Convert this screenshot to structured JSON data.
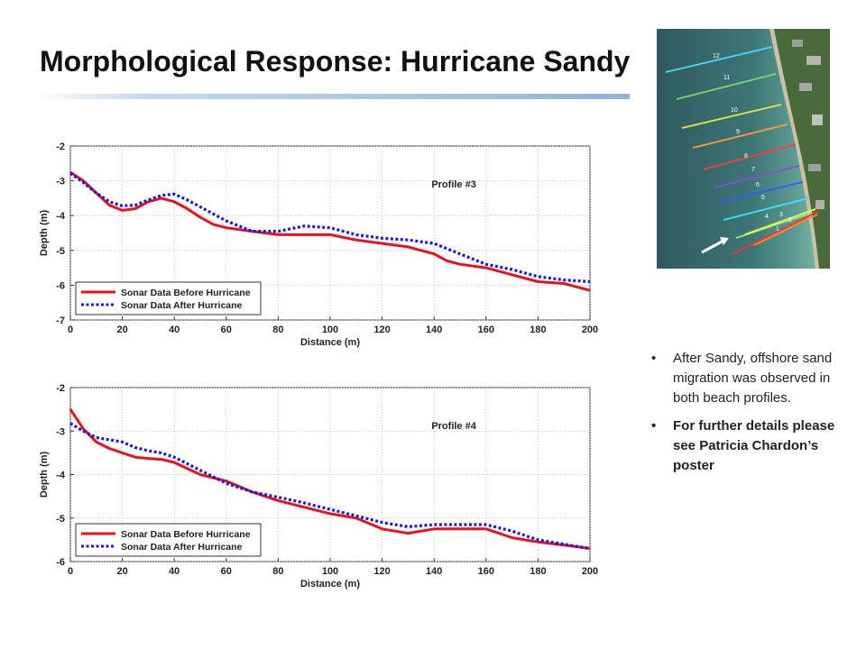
{
  "slide": {
    "title": "Morphological Response: Hurricane Sandy",
    "bullets": [
      "After Sandy, offshore sand migration was observed in both beach profiles.",
      "For further details please see Patricia Chardon’s poster"
    ]
  },
  "aerial_photo": {
    "transect_labels": [
      "12",
      "11",
      "10",
      "9",
      "8",
      "7",
      "6",
      "5",
      "4",
      "3",
      "2",
      "1"
    ],
    "transect_colors": [
      "#4fd0ff",
      "#7ad86a",
      "#e7e44a",
      "#ff9a2e",
      "#ff3b2e",
      "#8a4bd8",
      "#2f5bff",
      "#35e1ff",
      "#8ff26a",
      "#eaf05a",
      "#ff8a2e",
      "#ff2d2d"
    ],
    "arrow_icon": "arrow-up-right-icon"
  },
  "chart_data": [
    {
      "type": "line",
      "annotation": "Profile #3",
      "xlabel": "Distance (m)",
      "ylabel": "Depth (m)",
      "xlim": [
        0,
        200
      ],
      "ylim": [
        -7,
        -2
      ],
      "xticks": [
        0,
        20,
        40,
        60,
        80,
        100,
        120,
        140,
        160,
        180,
        200
      ],
      "yticks": [
        -2,
        -3,
        -4,
        -5,
        -6,
        -7
      ],
      "grid": true,
      "legend_position": "bottom-left",
      "series": [
        {
          "name": "Sonar Data Before Hurricane",
          "color": "#e8121a",
          "style": "solid",
          "x": [
            0,
            5,
            10,
            15,
            20,
            25,
            30,
            35,
            40,
            45,
            50,
            55,
            60,
            70,
            80,
            90,
            100,
            110,
            120,
            130,
            140,
            145,
            150,
            160,
            170,
            180,
            190,
            200
          ],
          "y": [
            -2.75,
            -3.0,
            -3.35,
            -3.7,
            -3.85,
            -3.8,
            -3.6,
            -3.5,
            -3.6,
            -3.8,
            -4.05,
            -4.25,
            -4.35,
            -4.45,
            -4.55,
            -4.55,
            -4.55,
            -4.7,
            -4.8,
            -4.9,
            -5.1,
            -5.3,
            -5.4,
            -5.5,
            -5.7,
            -5.9,
            -5.95,
            -6.15
          ]
        },
        {
          "name": "Sonar Data After Hurricane",
          "color": "#1a1ae6",
          "style": "dotted",
          "x": [
            0,
            5,
            10,
            15,
            20,
            25,
            30,
            35,
            40,
            45,
            50,
            55,
            60,
            70,
            80,
            90,
            100,
            110,
            120,
            130,
            140,
            150,
            160,
            170,
            180,
            190,
            200
          ],
          "y": [
            -2.78,
            -3.05,
            -3.35,
            -3.6,
            -3.72,
            -3.7,
            -3.55,
            -3.42,
            -3.38,
            -3.55,
            -3.75,
            -3.95,
            -4.15,
            -4.45,
            -4.45,
            -4.3,
            -4.35,
            -4.55,
            -4.65,
            -4.7,
            -4.8,
            -5.1,
            -5.4,
            -5.55,
            -5.75,
            -5.85,
            -5.9
          ]
        }
      ]
    },
    {
      "type": "line",
      "annotation": "Profile #4",
      "xlabel": "Distance (m)",
      "ylabel": "Depth (m)",
      "xlim": [
        0,
        200
      ],
      "ylim": [
        -6,
        -2
      ],
      "xticks": [
        0,
        20,
        40,
        60,
        80,
        100,
        120,
        140,
        160,
        180,
        200
      ],
      "yticks": [
        -2,
        -3,
        -4,
        -5,
        -6
      ],
      "grid": true,
      "legend_position": "bottom-left",
      "series": [
        {
          "name": "Sonar Data Before Hurricane",
          "color": "#e8121a",
          "style": "solid",
          "x": [
            0,
            5,
            10,
            15,
            20,
            25,
            30,
            35,
            40,
            50,
            60,
            70,
            80,
            90,
            100,
            110,
            120,
            130,
            140,
            150,
            160,
            170,
            180,
            190,
            200
          ],
          "y": [
            -2.5,
            -2.95,
            -3.25,
            -3.4,
            -3.5,
            -3.6,
            -3.63,
            -3.65,
            -3.72,
            -4.0,
            -4.15,
            -4.4,
            -4.6,
            -4.75,
            -4.9,
            -5.0,
            -5.25,
            -5.35,
            -5.25,
            -5.25,
            -5.25,
            -5.45,
            -5.55,
            -5.62,
            -5.7
          ]
        },
        {
          "name": "Sonar Data After Hurricane",
          "color": "#1a1ae6",
          "style": "dotted",
          "x": [
            0,
            5,
            10,
            15,
            20,
            25,
            30,
            35,
            40,
            50,
            60,
            70,
            80,
            90,
            100,
            110,
            120,
            130,
            140,
            150,
            160,
            170,
            180,
            190,
            200
          ],
          "y": [
            -2.82,
            -3.0,
            -3.15,
            -3.2,
            -3.25,
            -3.38,
            -3.45,
            -3.5,
            -3.6,
            -3.9,
            -4.2,
            -4.4,
            -4.52,
            -4.65,
            -4.8,
            -4.95,
            -5.1,
            -5.2,
            -5.15,
            -5.15,
            -5.15,
            -5.3,
            -5.5,
            -5.6,
            -5.7
          ]
        }
      ]
    }
  ]
}
